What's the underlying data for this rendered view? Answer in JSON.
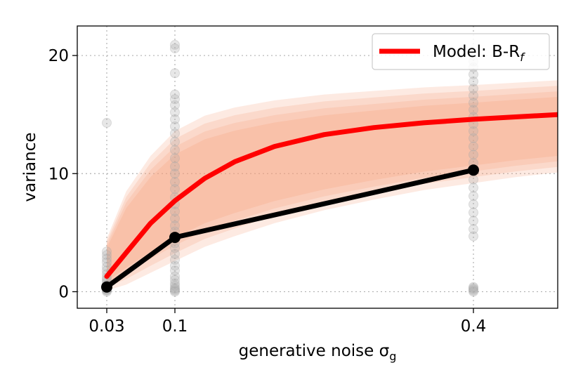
{
  "chart_data": {
    "type": "line",
    "xlabel": "generative noise σ",
    "xlabel_subscript": "g",
    "ylabel": "variance",
    "x_ticks": [
      0.03,
      0.1,
      0.4
    ],
    "x_tick_labels": [
      "0.03",
      "0.1",
      "0.4"
    ],
    "y_ticks": [
      0,
      10,
      20
    ],
    "y_tick_labels": [
      "0",
      "10",
      "20"
    ],
    "xlim": [
      0.0,
      0.5
    ],
    "ylim": [
      -1.4,
      22.5
    ],
    "grid": true,
    "legend_position": "top-right",
    "series": [
      {
        "name": "Model: B-R",
        "name_subscript": "f",
        "color": "#ff0000",
        "x": [
          0.03,
          0.05,
          0.075,
          0.1,
          0.13,
          0.16,
          0.2,
          0.25,
          0.3,
          0.35,
          0.4,
          0.45,
          0.5
        ],
        "y": [
          1.3,
          3.3,
          5.8,
          7.7,
          9.6,
          11.0,
          12.3,
          13.3,
          13.9,
          14.3,
          14.6,
          14.8,
          15.0
        ]
      },
      {
        "color": "#000000",
        "markers": true,
        "x": [
          0.03,
          0.1,
          0.4
        ],
        "y": [
          0.4,
          4.6,
          10.3
        ]
      }
    ],
    "band": {
      "color": "#f8a07a",
      "x": [
        0.03,
        0.05,
        0.075,
        0.1,
        0.13,
        0.16,
        0.2,
        0.25,
        0.3,
        0.35,
        0.4,
        0.45,
        0.5
      ],
      "lower": [
        0.1,
        0.6,
        1.6,
        2.6,
        3.8,
        4.7,
        5.8,
        6.9,
        7.8,
        8.6,
        9.2,
        9.7,
        10.1
      ],
      "upper": [
        4.5,
        8.5,
        11.5,
        13.6,
        14.9,
        15.6,
        16.2,
        16.7,
        17.0,
        17.3,
        17.5,
        17.7,
        17.9
      ]
    },
    "scatter_color": "#aaaaaa",
    "scatter": [
      {
        "x": 0.03,
        "y": [
          0.0,
          0.1,
          0.15,
          0.2,
          0.3,
          0.4,
          0.5,
          0.6,
          0.8,
          1.0,
          1.2,
          1.5,
          1.8,
          2.1,
          2.5,
          2.8,
          3.1,
          3.4,
          14.3
        ]
      },
      {
        "x": 0.1,
        "y": [
          0.0,
          0.1,
          0.2,
          0.3,
          0.5,
          0.7,
          1.0,
          1.3,
          1.8,
          2.2,
          2.7,
          3.2,
          3.7,
          4.1,
          4.6,
          5.1,
          5.6,
          6.2,
          6.8,
          7.4,
          8.0,
          8.7,
          9.3,
          10.0,
          10.6,
          11.3,
          12.0,
          12.7,
          13.4,
          14.0,
          14.6,
          15.2,
          15.8,
          16.3,
          16.7,
          18.5,
          20.6,
          20.9
        ]
      },
      {
        "x": 0.4,
        "y": [
          0.0,
          0.1,
          0.2,
          0.3,
          0.4,
          4.7,
          5.3,
          6.0,
          6.7,
          7.4,
          8.1,
          8.8,
          9.5,
          10.2,
          10.9,
          11.6,
          12.3,
          13.0,
          13.6,
          14.2,
          14.8,
          15.4,
          16.0,
          16.6,
          17.2,
          17.8,
          18.4,
          19.0,
          19.5
        ]
      }
    ]
  }
}
